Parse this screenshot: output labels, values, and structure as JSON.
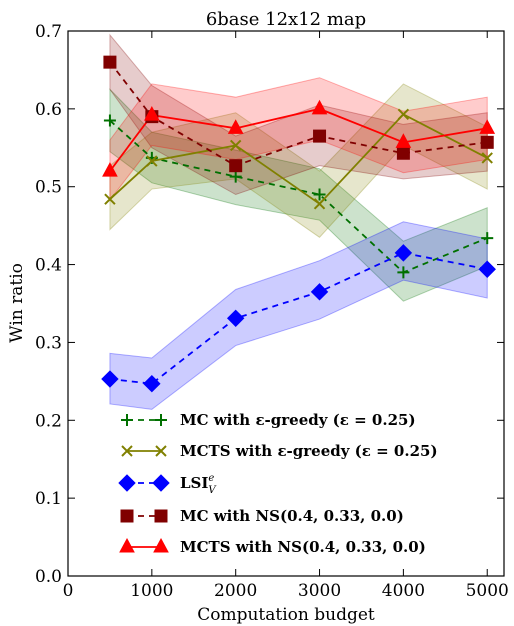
{
  "chart_data": {
    "type": "line",
    "title": "6base 12x12 map",
    "xlabel": "Computation budget",
    "ylabel": "Win ratio",
    "xlim": [
      0,
      5200
    ],
    "ylim": [
      0,
      0.7
    ],
    "x_ticks": [
      0,
      1000,
      2000,
      3000,
      4000,
      5000
    ],
    "x_tick_labels": [
      "0",
      "1000",
      "2000",
      "3000",
      "4000",
      "5000"
    ],
    "y_ticks": [
      0,
      0.1,
      0.2,
      0.3,
      0.4,
      0.5,
      0.6,
      0.7
    ],
    "y_tick_labels": [
      "0.0",
      "0.1",
      "0.2",
      "0.3",
      "0.4",
      "0.5",
      "0.6",
      "0.7"
    ],
    "grid": false,
    "legend_position": "bottom-right",
    "x": [
      500,
      1000,
      2000,
      3000,
      4000,
      5000
    ],
    "series": [
      {
        "name": "MC with ε-greedy (ε = 0.25)",
        "legend_main": "MC with ",
        "legend_rest": "ε-greedy (ε = 0.25)",
        "color": "#007000",
        "line_style": "dashed",
        "marker": "plus",
        "values": [
          0.585,
          0.537,
          0.513,
          0.49,
          0.39,
          0.434
        ],
        "band_low": [
          0.545,
          0.505,
          0.477,
          0.457,
          0.353,
          0.398
        ],
        "band_high": [
          0.625,
          0.57,
          0.547,
          0.523,
          0.43,
          0.473
        ]
      },
      {
        "name": "MCTS with ε-greedy (ε = 0.25)",
        "legend_main": "MCTS with ",
        "legend_rest": "ε-greedy (ε = 0.25)",
        "color": "#808000",
        "line_style": "solid",
        "marker": "x",
        "values": [
          0.484,
          0.533,
          0.553,
          0.478,
          0.593,
          0.537
        ],
        "band_low": [
          0.445,
          0.497,
          0.51,
          0.435,
          0.553,
          0.497
        ],
        "band_high": [
          0.527,
          0.57,
          0.595,
          0.52,
          0.632,
          0.577
        ]
      },
      {
        "name": "LSI_V^e",
        "legend_main": "LSI",
        "legend_rest": "",
        "legend_sub": "V",
        "legend_sup": "e",
        "color": "#0000ff",
        "line_style": "dashed",
        "marker": "diamond",
        "values": [
          0.253,
          0.247,
          0.331,
          0.365,
          0.415,
          0.394
        ],
        "band_low": [
          0.221,
          0.214,
          0.296,
          0.33,
          0.38,
          0.357
        ],
        "band_high": [
          0.286,
          0.28,
          0.368,
          0.405,
          0.455,
          0.433
        ]
      },
      {
        "name": "MC with NS(0.4, 0.33, 0.0)",
        "legend_main": "MC with NS",
        "legend_rest": "(0.4, 0.33, 0.0)",
        "color": "#800000",
        "line_style": "dashed",
        "marker": "square",
        "values": [
          0.66,
          0.59,
          0.527,
          0.565,
          0.543,
          0.557
        ],
        "band_low": [
          0.625,
          0.55,
          0.49,
          0.527,
          0.51,
          0.52
        ],
        "band_high": [
          0.695,
          0.63,
          0.565,
          0.605,
          0.58,
          0.595
        ]
      },
      {
        "name": "MCTS with NS(0.4, 0.33, 0.0)",
        "legend_main": "MCTS with NS",
        "legend_rest": "(0.4, 0.33, 0.0)",
        "color": "#ff0000",
        "line_style": "solid",
        "marker": "triangle",
        "values": [
          0.52,
          0.592,
          0.575,
          0.6,
          0.557,
          0.575
        ],
        "band_low": [
          0.483,
          0.553,
          0.535,
          0.56,
          0.518,
          0.535
        ],
        "band_high": [
          0.56,
          0.632,
          0.615,
          0.64,
          0.597,
          0.615
        ]
      }
    ]
  }
}
